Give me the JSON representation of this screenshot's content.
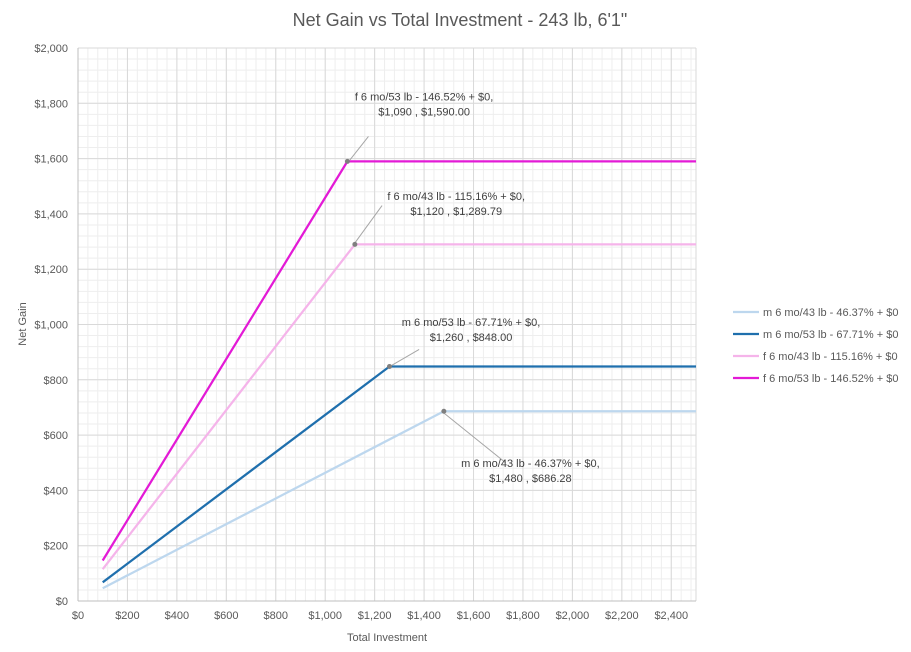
{
  "chart_data": {
    "type": "line",
    "title": "Net Gain vs Total Investment - 243 lb, 6'1\"",
    "xlabel": "Total Investment",
    "ylabel": "Net Gain",
    "xlim": [
      0,
      2500
    ],
    "ylim": [
      0,
      2000
    ],
    "x_ticks": [
      0,
      200,
      400,
      600,
      800,
      1000,
      1200,
      1400,
      1600,
      1800,
      2000,
      2200,
      2400
    ],
    "x_tick_labels": [
      "$0",
      "$200",
      "$400",
      "$600",
      "$800",
      "$1,000",
      "$1,200",
      "$1,400",
      "$1,600",
      "$1,800",
      "$2,000",
      "$2,200",
      "$2,400"
    ],
    "y_ticks": [
      0,
      200,
      400,
      600,
      800,
      1000,
      1200,
      1400,
      1600,
      1800,
      2000
    ],
    "y_tick_labels": [
      "$0",
      "$200",
      "$400",
      "$600",
      "$800",
      "$1,000",
      "$1,200",
      "$1,400",
      "$1,600",
      "$1,800",
      "$2,000"
    ],
    "grid": true,
    "legend_position": "right",
    "series": [
      {
        "name": "m 6 mo/43 lb - 46.37% + $0",
        "color": "#bdd7ee",
        "points": [
          [
            100,
            46.37
          ],
          [
            1480,
            686.28
          ],
          [
            2500,
            686.28
          ]
        ]
      },
      {
        "name": "m 6 mo/53 lb - 67.71% + $0",
        "color": "#1f6fad",
        "points": [
          [
            100,
            67.71
          ],
          [
            1260,
            848.0
          ],
          [
            2500,
            848.0
          ]
        ]
      },
      {
        "name": "f 6 mo/43 lb - 115.16% + $0",
        "color": "#f5b4ea",
        "points": [
          [
            100,
            115.16
          ],
          [
            1120,
            1289.79
          ],
          [
            2500,
            1289.79
          ]
        ]
      },
      {
        "name": "f 6 mo/53 lb - 146.52% + $0",
        "color": "#e31ad6",
        "points": [
          [
            100,
            146.52
          ],
          [
            1090,
            1590.0
          ],
          [
            2500,
            1590.0
          ]
        ]
      }
    ],
    "annotations": [
      {
        "line1": "f 6 mo/53 lb - 146.52% + $0,",
        "line2": "$1,090 ,  $1,590.00",
        "point": [
          1090,
          1590.0
        ],
        "text_anchor_data": [
          1400,
          1810
        ],
        "leader_from_data": [
          1100,
          1595
        ],
        "leader_to_data": [
          1175,
          1680
        ]
      },
      {
        "line1": "f 6 mo/43 lb - 115.16% + $0,",
        "line2": "$1,120 ,  $1,289.79",
        "point": [
          1120,
          1289.79
        ],
        "text_anchor_data": [
          1530,
          1450
        ],
        "leader_from_data": [
          1120,
          1295
        ],
        "leader_to_data": [
          1230,
          1430
        ]
      },
      {
        "line1": "m 6 mo/53 lb - 67.71% + $0,",
        "line2": "$1,260 ,  $848.00",
        "point": [
          1260,
          848.0
        ],
        "text_anchor_data": [
          1590,
          995
        ],
        "leader_from_data": [
          1265,
          850
        ],
        "leader_to_data": [
          1380,
          910
        ]
      },
      {
        "line1": "m 6 mo/43 lb - 46.37% + $0,",
        "line2": "$1,480 ,  $686.28",
        "point": [
          1480,
          686.28
        ],
        "text_anchor_data": [
          1830,
          485
        ],
        "leader_from_data": [
          1480,
          680
        ],
        "leader_to_data": [
          1730,
          500
        ]
      }
    ]
  }
}
